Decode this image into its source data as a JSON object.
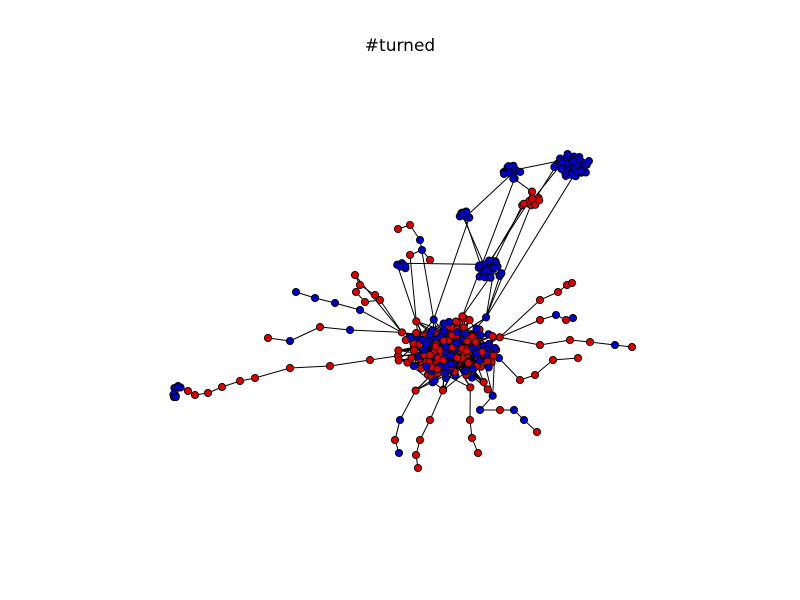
{
  "figure": {
    "title": "#turned"
  },
  "colors": {
    "blue_node": "#0000cc",
    "red_node": "#dd0000",
    "edge": "#000000",
    "node_outline": "#000000",
    "background": "#ffffff"
  },
  "legend": []
}
